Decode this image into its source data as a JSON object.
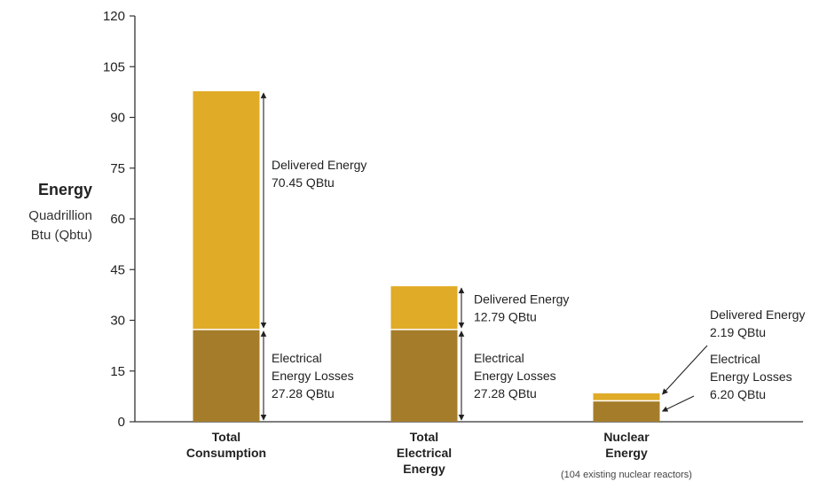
{
  "chart_data": {
    "type": "bar",
    "stacked": true,
    "ylabel": {
      "title": "Energy",
      "subtitle_lines": [
        "Quadrillion",
        "Btu (Qbtu)"
      ]
    },
    "ylim": [
      0,
      120
    ],
    "yticks": [
      0,
      15,
      30,
      45,
      60,
      75,
      90,
      105,
      120
    ],
    "grid": false,
    "categories": [
      {
        "label_lines": [
          "Total",
          "Consumption"
        ],
        "note": ""
      },
      {
        "label_lines": [
          "Total",
          "Electrical",
          "Energy"
        ],
        "note": ""
      },
      {
        "label_lines": [
          "Nuclear",
          "Energy"
        ],
        "note": "(104 existing nuclear reactors)"
      }
    ],
    "series": [
      {
        "key": "losses",
        "color": "#a57d2a",
        "values": [
          27.28,
          27.28,
          6.2
        ]
      },
      {
        "key": "delivered",
        "color": "#e0ab27",
        "values": [
          70.45,
          12.79,
          2.19
        ]
      }
    ],
    "annotations": [
      {
        "category": 0,
        "segment": "delivered",
        "lines": [
          "Delivered Energy",
          "70.45 QBtu"
        ]
      },
      {
        "category": 0,
        "segment": "losses",
        "lines": [
          "Electrical",
          "Energy Losses",
          "27.28 QBtu"
        ]
      },
      {
        "category": 1,
        "segment": "delivered",
        "lines": [
          "Delivered Energy",
          "12.79 QBtu"
        ]
      },
      {
        "category": 1,
        "segment": "losses",
        "lines": [
          "Electrical",
          "Energy Losses",
          "27.28 QBtu"
        ]
      },
      {
        "category": 2,
        "segment": "delivered",
        "lines": [
          "Delivered Energy",
          "2.19 QBtu"
        ]
      },
      {
        "category": 2,
        "segment": "losses",
        "lines": [
          "Electrical",
          "Energy Losses",
          "6.20 QBtu"
        ]
      }
    ]
  }
}
